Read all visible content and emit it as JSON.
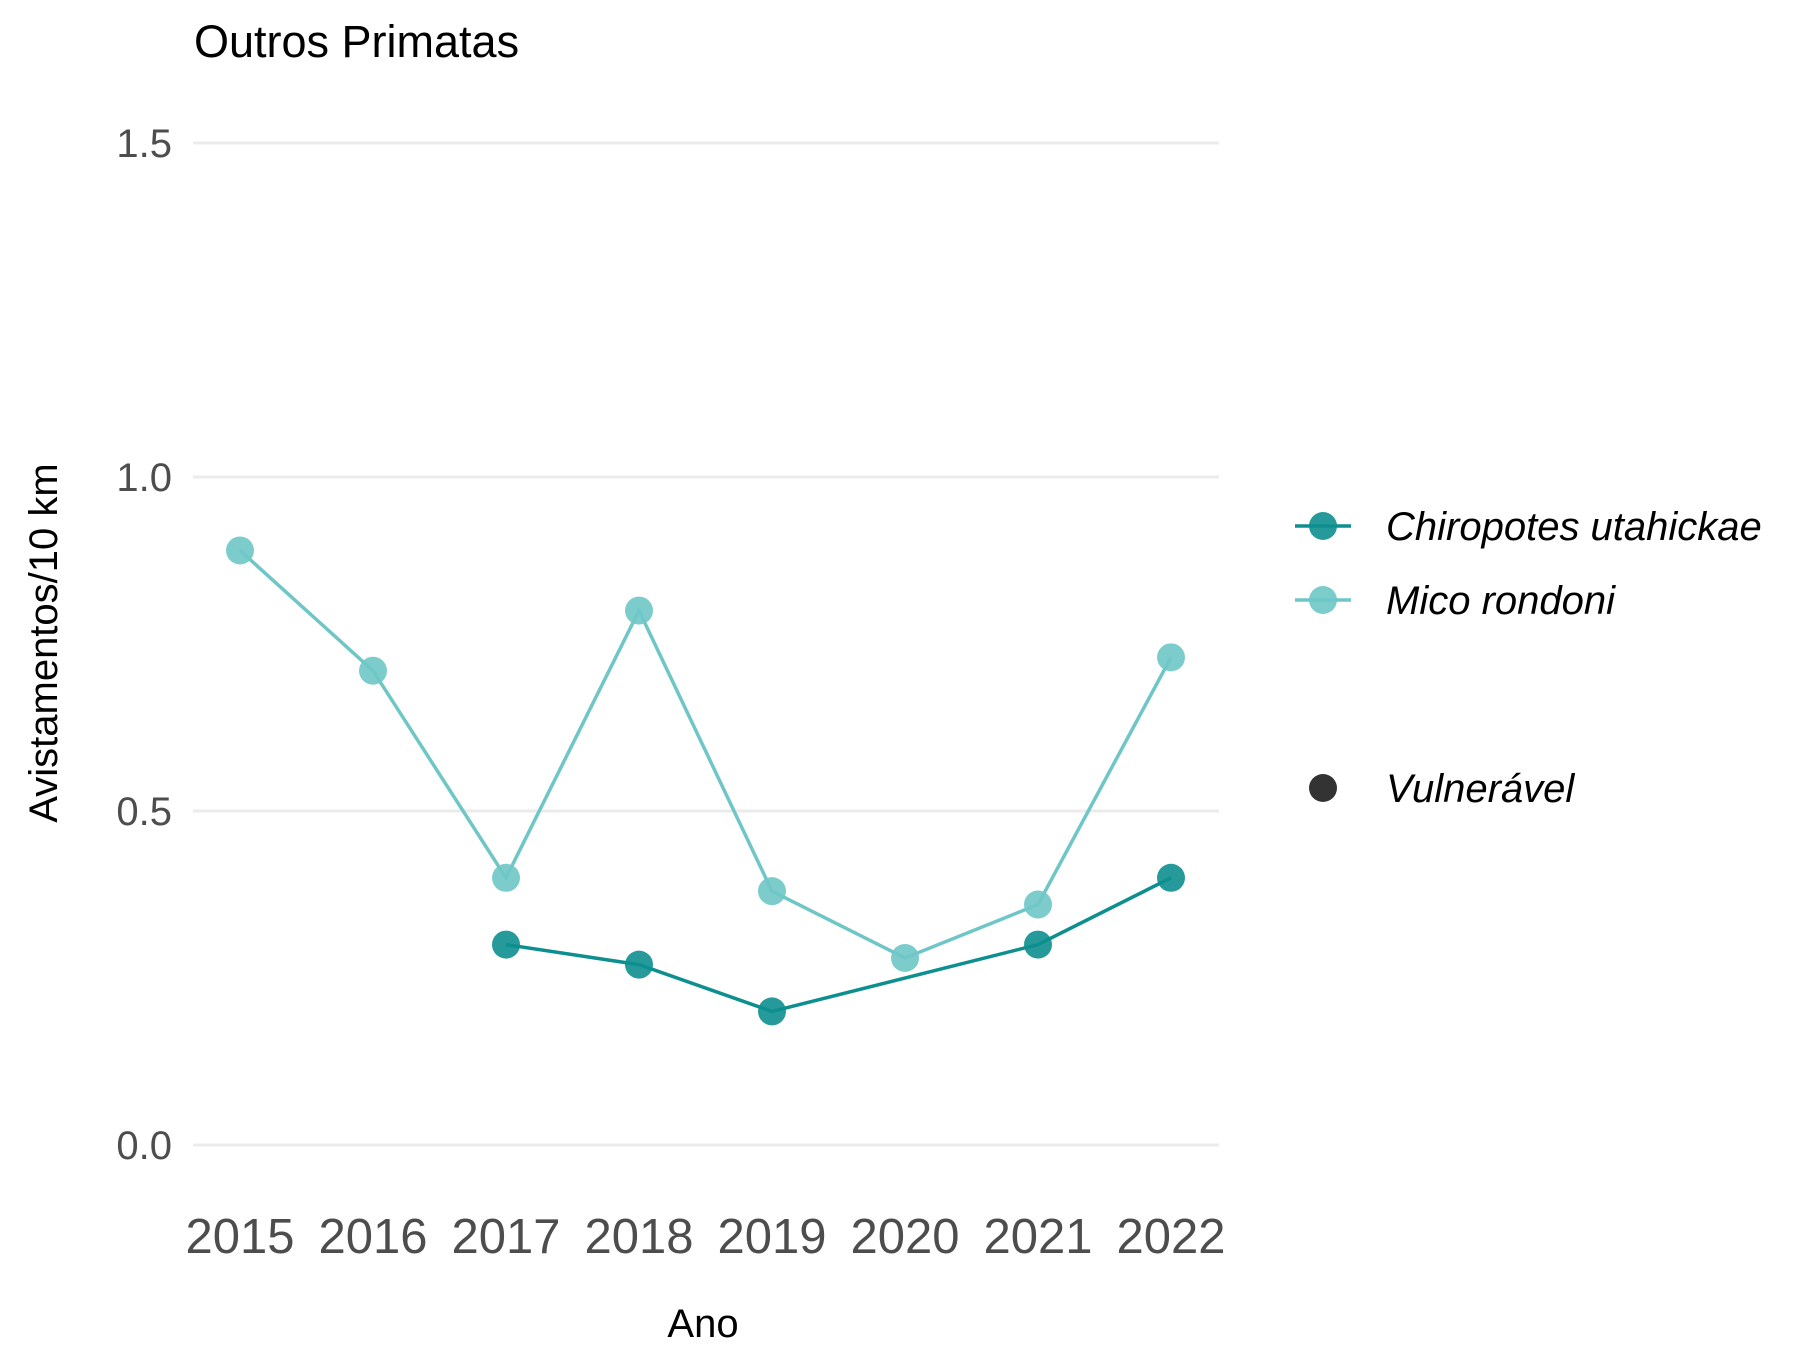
{
  "chart_data": {
    "type": "line",
    "title": "Outros Primatas",
    "xlabel": "Ano",
    "ylabel": "Avistamentos/10 km",
    "categories": [
      "2015",
      "2016",
      "2017",
      "2018",
      "2019",
      "2020",
      "2021",
      "2022"
    ],
    "ylim": [
      0,
      1.5
    ],
    "yticks": [
      "0.0",
      "0.5",
      "1.0",
      "1.5"
    ],
    "grid": true,
    "legend_position": "right",
    "series": [
      {
        "name": "Chiropotes utahickae",
        "color": "#0e8f8f",
        "values": [
          null,
          null,
          0.3,
          0.27,
          0.2,
          null,
          0.3,
          0.4
        ]
      },
      {
        "name": "Mico rondoni",
        "color": "#6fc6c6",
        "values": [
          0.89,
          0.71,
          0.4,
          0.8,
          0.38,
          0.28,
          0.36,
          0.73
        ]
      }
    ],
    "status_legend": [
      {
        "label": "Vulnerável",
        "color": "#333333"
      }
    ]
  }
}
